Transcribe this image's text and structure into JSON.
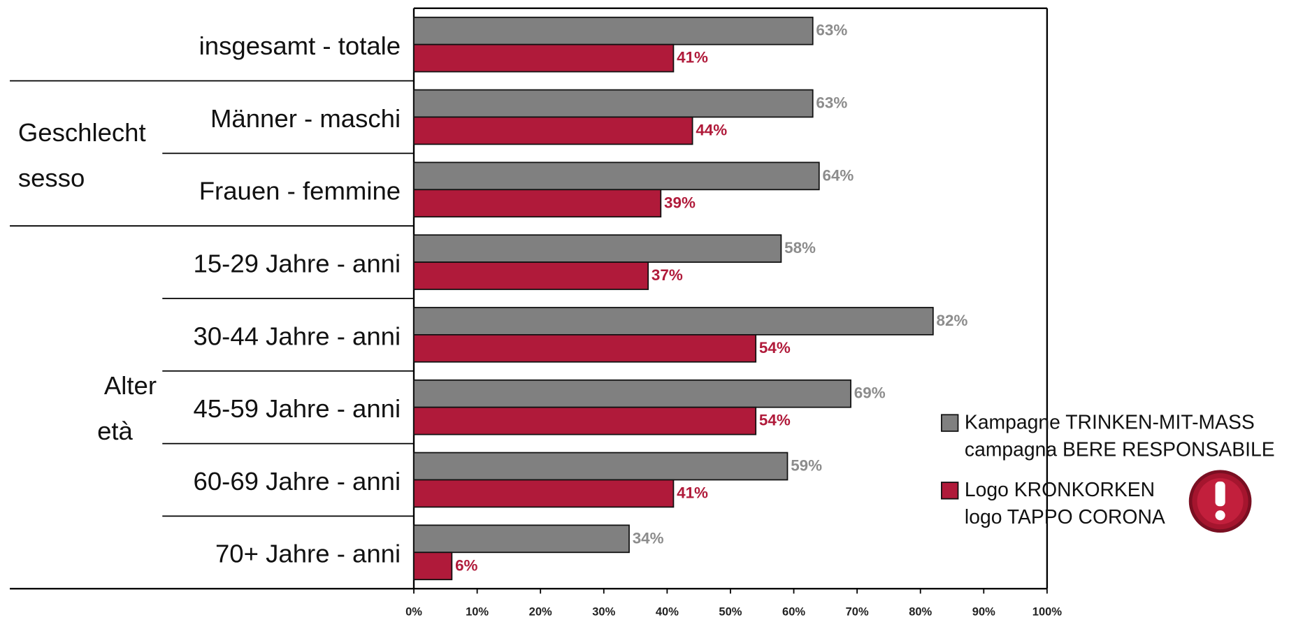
{
  "chart_data": {
    "type": "bar",
    "orientation": "horizontal",
    "categories": [
      "insgesamt - totale",
      "Männer - maschi",
      "Frauen - femmine",
      "15-29 Jahre - anni",
      "30-44 Jahre - anni",
      "45-59 Jahre - anni",
      "60-69 Jahre - anni",
      "70+ Jahre - anni"
    ],
    "groups": [
      [
        "Geschlecht",
        "sesso"
      ],
      [
        "Alter",
        "età"
      ]
    ],
    "series": [
      {
        "name": "Kampagne TRINKEN-MIT-MASS\ncampagna BERE RESPONSABILE",
        "color": "#808080",
        "label_color": "#8c8c8c",
        "values": [
          63,
          63,
          64,
          58,
          82,
          69,
          59,
          34
        ],
        "value_labels": [
          "63%",
          "63%",
          "64%",
          "58%",
          "82%",
          "69%",
          "59%",
          "34%"
        ]
      },
      {
        "name": "Logo KRONKORKEN\nlogo TAPPO CORONA",
        "color": "#b01a3a",
        "label_color": "#b01a3a",
        "values": [
          41,
          44,
          39,
          37,
          54,
          54,
          41,
          6
        ],
        "value_labels": [
          "41%",
          "44%",
          "39%",
          "37%",
          "54%",
          "54%",
          "41%",
          "6%"
        ]
      }
    ],
    "xlim": [
      0,
      100
    ],
    "xticks": [
      {
        "value": 0,
        "label": "0%"
      },
      {
        "value": 10,
        "label": "10%"
      },
      {
        "value": 20,
        "label": "20%"
      },
      {
        "value": 30,
        "label": "30%"
      },
      {
        "value": 40,
        "label": "40%"
      },
      {
        "value": 50,
        "label": "50%"
      },
      {
        "value": 60,
        "label": "60%"
      },
      {
        "value": 70,
        "label": "70%"
      },
      {
        "value": 80,
        "label": "80%"
      },
      {
        "value": 90,
        "label": "90%"
      },
      {
        "value": 100,
        "label": "100%"
      }
    ],
    "legend": "right"
  }
}
